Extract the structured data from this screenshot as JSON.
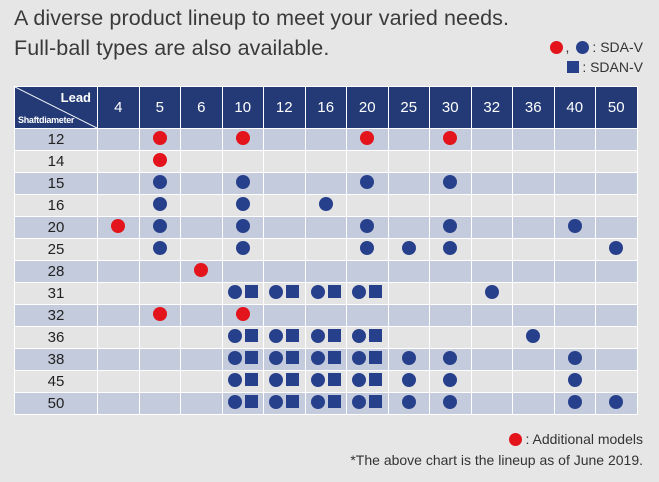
{
  "headline": {
    "line1": "A diverse product lineup to meet your varied needs.",
    "line2": "Full-ball types are also available."
  },
  "legend_top": {
    "sda_v_sep": ",",
    "sda_v_label": ": SDA-V",
    "sdan_v_label": ": SDAN-V"
  },
  "table": {
    "corner_lead": "Lead",
    "corner_shaft": "Shaftdiameter",
    "leads": [
      "4",
      "5",
      "6",
      "10",
      "12",
      "16",
      "20",
      "25",
      "30",
      "32",
      "36",
      "40",
      "50"
    ],
    "rows": [
      {
        "diameter": "12",
        "cells": [
          "",
          "R",
          "",
          "R",
          "",
          "",
          "R",
          "",
          "R",
          "",
          "",
          "",
          ""
        ]
      },
      {
        "diameter": "14",
        "cells": [
          "",
          "R",
          "",
          "",
          "",
          "",
          "",
          "",
          "",
          "",
          "",
          "",
          ""
        ]
      },
      {
        "diameter": "15",
        "cells": [
          "",
          "B",
          "",
          "B",
          "",
          "",
          "B",
          "",
          "B",
          "",
          "",
          "",
          ""
        ]
      },
      {
        "diameter": "16",
        "cells": [
          "",
          "B",
          "",
          "B",
          "",
          "B",
          "",
          "",
          "",
          "",
          "",
          "",
          ""
        ]
      },
      {
        "diameter": "20",
        "cells": [
          "R",
          "B",
          "",
          "B",
          "",
          "",
          "B",
          "",
          "B",
          "",
          "",
          "B",
          ""
        ]
      },
      {
        "diameter": "25",
        "cells": [
          "",
          "B",
          "",
          "B",
          "",
          "",
          "B",
          "B",
          "B",
          "",
          "",
          "",
          "B"
        ]
      },
      {
        "diameter": "28",
        "cells": [
          "",
          "",
          "R",
          "",
          "",
          "",
          "",
          "",
          "",
          "",
          "",
          "",
          ""
        ]
      },
      {
        "diameter": "31",
        "cells": [
          "",
          "",
          "",
          "BS",
          "BS",
          "BS",
          "BS",
          "",
          "",
          "B",
          "",
          "",
          ""
        ]
      },
      {
        "diameter": "32",
        "cells": [
          "",
          "R",
          "",
          "R",
          "",
          "",
          "",
          "",
          "",
          "",
          "",
          "",
          ""
        ]
      },
      {
        "diameter": "36",
        "cells": [
          "",
          "",
          "",
          "BS",
          "BS",
          "BS",
          "BS",
          "",
          "",
          "",
          "B",
          "",
          ""
        ]
      },
      {
        "diameter": "38",
        "cells": [
          "",
          "",
          "",
          "BS",
          "BS",
          "BS",
          "BS",
          "B",
          "B",
          "",
          "",
          "B",
          ""
        ]
      },
      {
        "diameter": "45",
        "cells": [
          "",
          "",
          "",
          "BS",
          "BS",
          "BS",
          "BS",
          "B",
          "B",
          "",
          "",
          "B",
          ""
        ]
      },
      {
        "diameter": "50",
        "cells": [
          "",
          "",
          "",
          "BS",
          "BS",
          "BS",
          "BS",
          "B",
          "B",
          "",
          "",
          "B",
          "B"
        ]
      }
    ]
  },
  "legend_bottom": {
    "additional_label": ": Additional models"
  },
  "footnote": "*The above chart is the lineup as of June 2019.",
  "colors": {
    "header_bg": "#233a76",
    "row_dark": "#c3cbdc",
    "row_light": "#e4e4e4",
    "marker_blue": "#27408b",
    "marker_red": "#e3141b"
  },
  "icons": {
    "R": "red-circle-icon",
    "B": "blue-circle-icon",
    "S": "blue-square-icon"
  }
}
